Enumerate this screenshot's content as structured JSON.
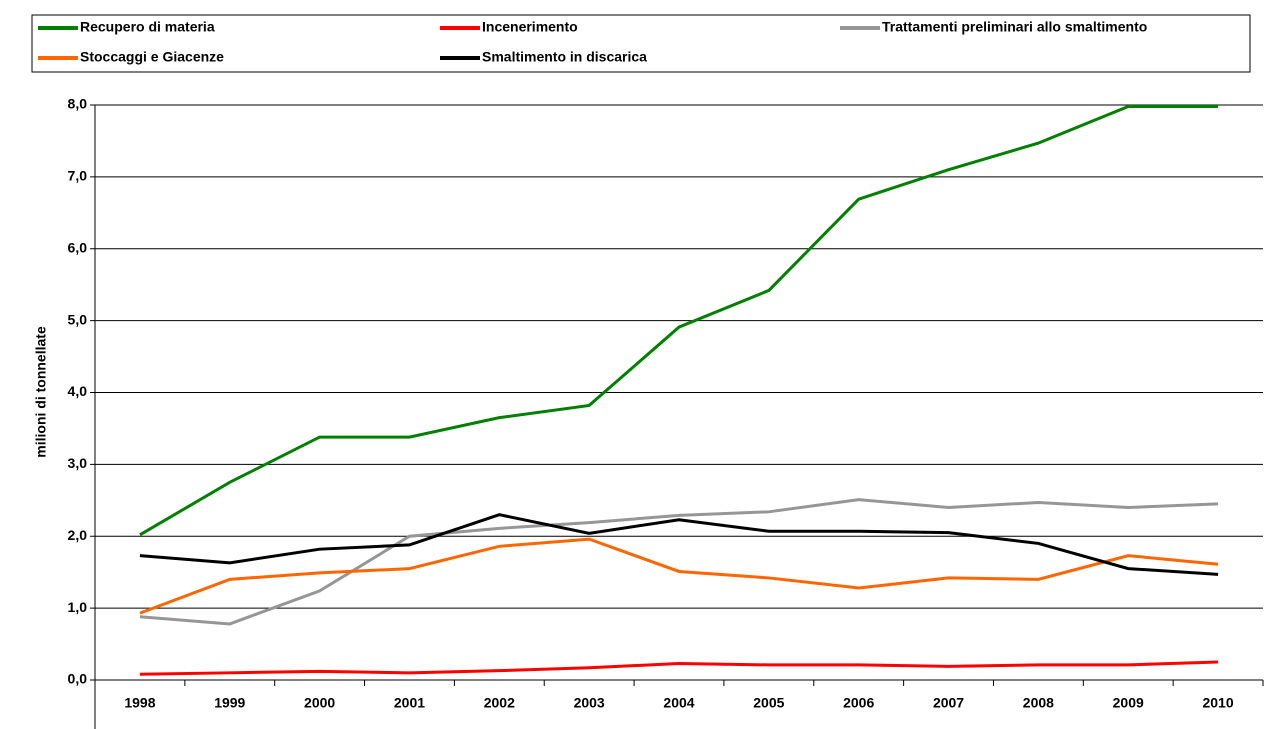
{
  "chart_data": {
    "type": "line",
    "y_label": "milioni di tonnellate",
    "categories": [
      "1998",
      "1999",
      "2000",
      "2001",
      "2002",
      "2003",
      "2004",
      "2005",
      "2006",
      "2007",
      "2008",
      "2009",
      "2010"
    ],
    "series": [
      {
        "name": "Recupero di materia",
        "color": "#008000",
        "values": [
          2.02,
          2.75,
          3.38,
          3.38,
          3.65,
          3.82,
          4.91,
          5.42,
          6.69,
          7.1,
          7.47,
          7.98,
          7.98
        ]
      },
      {
        "name": "Incenerimento",
        "color": "#ff0000",
        "values": [
          0.08,
          0.1,
          0.12,
          0.1,
          0.13,
          0.17,
          0.23,
          0.21,
          0.21,
          0.19,
          0.21,
          0.21,
          0.25
        ]
      },
      {
        "name": "Trattamenti preliminari allo smaltimento",
        "color": "#969696",
        "values": [
          0.88,
          0.78,
          1.24,
          2.0,
          2.11,
          2.19,
          2.29,
          2.34,
          2.51,
          2.4,
          2.47,
          2.4,
          2.45
        ]
      },
      {
        "name": "Stoccaggi e Giacenze",
        "color": "#ff6600",
        "values": [
          0.93,
          1.4,
          1.49,
          1.55,
          1.86,
          1.96,
          1.51,
          1.42,
          1.28,
          1.42,
          1.4,
          1.73,
          1.61
        ]
      },
      {
        "name": "Smaltimento in discarica",
        "color": "#000000",
        "values": [
          1.73,
          1.63,
          1.82,
          1.88,
          2.3,
          2.04,
          2.23,
          2.07,
          2.07,
          2.05,
          1.9,
          1.55,
          1.47
        ]
      }
    ],
    "ylim": [
      0,
      8
    ],
    "yticks": [
      {
        "value": 0,
        "label": "0,0"
      },
      {
        "value": 1,
        "label": "1,0"
      },
      {
        "value": 2,
        "label": "2,0"
      },
      {
        "value": 3,
        "label": "3,0"
      },
      {
        "value": 4,
        "label": "4,0"
      },
      {
        "value": 5,
        "label": "5,0"
      },
      {
        "value": 6,
        "label": "6,0"
      },
      {
        "value": 7,
        "label": "7,0"
      },
      {
        "value": 8,
        "label": "8,0"
      }
    ],
    "grid": true
  }
}
